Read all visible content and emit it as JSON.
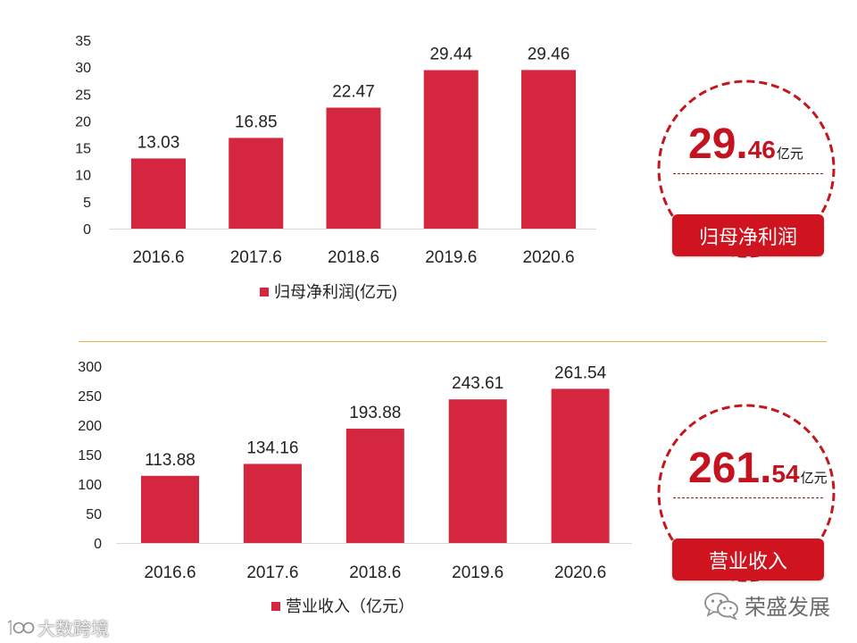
{
  "chart_data": [
    {
      "type": "bar",
      "categories": [
        "2016.6",
        "2017.6",
        "2018.6",
        "2019.6",
        "2020.6"
      ],
      "series": [
        {
          "name": "归母净利润(亿元)",
          "values": [
            13.03,
            16.85,
            22.47,
            29.44,
            29.46
          ]
        }
      ],
      "ylim": [
        0,
        35
      ],
      "yticks": [
        0,
        5,
        10,
        15,
        20,
        25,
        30,
        35
      ],
      "grid": false,
      "legend": "bottom"
    },
    {
      "type": "bar",
      "categories": [
        "2016.6",
        "2017.6",
        "2018.6",
        "2019.6",
        "2020.6"
      ],
      "series": [
        {
          "name": "营业收入（亿元）",
          "values": [
            113.88,
            134.16,
            193.88,
            243.61,
            261.54
          ]
        }
      ],
      "ylim": [
        0,
        300
      ],
      "yticks": [
        0,
        50,
        100,
        150,
        200,
        250,
        300
      ],
      "grid": false,
      "legend": "bottom"
    }
  ],
  "callouts": [
    {
      "value_main": "29.",
      "value_decimal": "46",
      "unit": "亿元",
      "badge": "归母净利润"
    },
    {
      "value_main": "261.",
      "value_decimal": "54",
      "unit": "亿元",
      "badge": "营业收入"
    }
  ],
  "watermarks": {
    "source_logo": "大数跨境",
    "wechat_account": "荣盛发展"
  },
  "colors": {
    "bar": "#d4263f",
    "accent": "#c4121f",
    "circle": "#c4161c",
    "badge": "#d0141f",
    "divider": "#f0b44c"
  }
}
